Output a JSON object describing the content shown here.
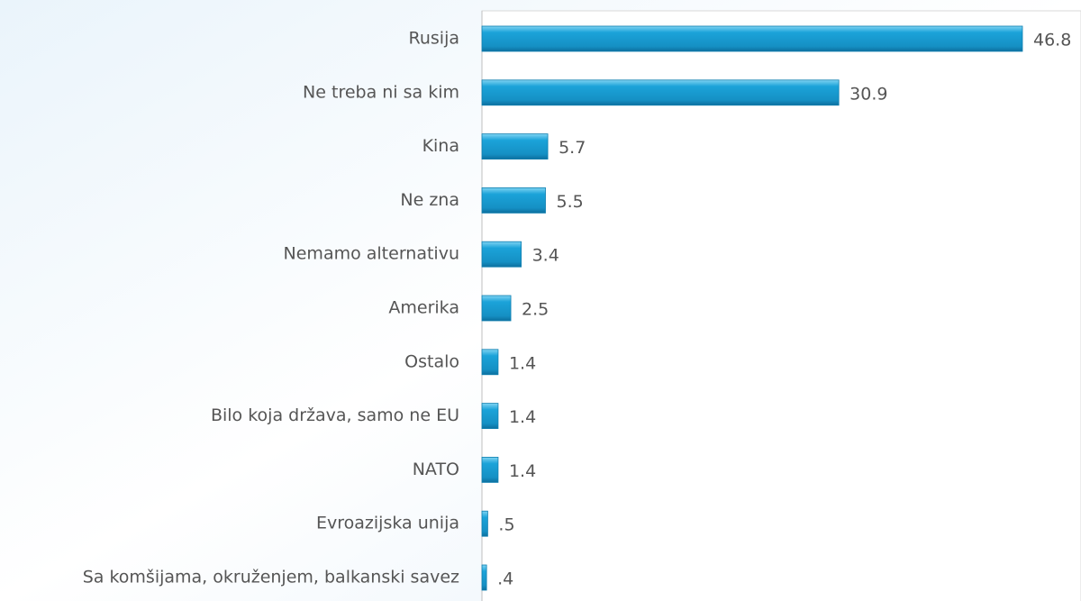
{
  "chart_data": {
    "type": "barh",
    "categories": [
      "Rusija",
      "Ne treba ni sa kim",
      "Kina",
      "Ne zna",
      "Nemamo alternativu",
      "Amerika",
      "Ostalo",
      "Bilo koja država, samo ne EU",
      "NATO",
      "Evroazijska unija",
      "Sa komšijama, okruženjem, balkanski savez"
    ],
    "values": [
      46.8,
      30.9,
      5.7,
      5.5,
      3.4,
      2.5,
      1.4,
      1.4,
      1.4,
      0.5,
      0.4
    ],
    "value_labels": [
      "46.8",
      "30.9",
      "5.7",
      "5.5",
      "3.4",
      "2.5",
      "1.4",
      "1.4",
      "1.4",
      ".5",
      ".4"
    ],
    "color": "#1ba3d9"
  }
}
